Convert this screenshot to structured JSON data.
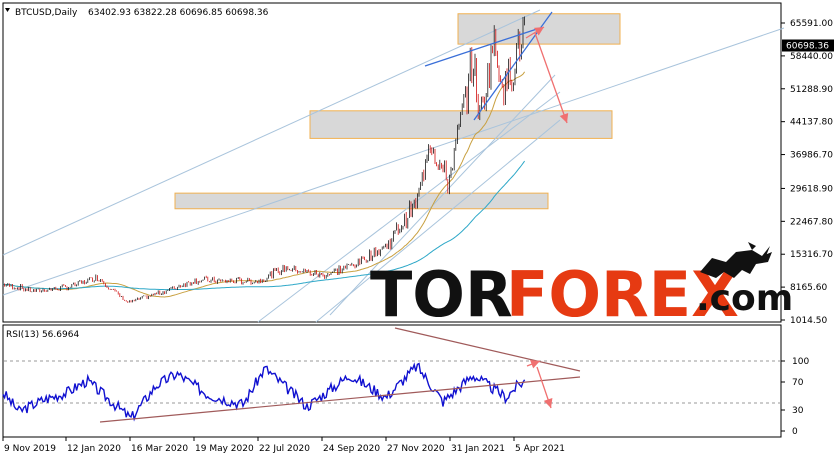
{
  "header": {
    "symbol": "BTCUSD,Daily",
    "ohlc": "63402.93 63822.28 60696.85 60698.36"
  },
  "rsi_header": "RSI(13) 56.6964",
  "watermark": {
    "part1": "TOR",
    "part2": "FOREX",
    "part3": ".com"
  },
  "colors": {
    "bull": "#1a1a1a",
    "bear": "#d01010",
    "ma_fast": "#c8a040",
    "ma_slow": "#2ea8c8",
    "channel": "#a9c4dc",
    "trend_blue": "#3a6fd8",
    "zone_fill": "#d8d8d8",
    "zone_border": "#f0b050",
    "arrow": "#f07070",
    "rsi_line": "#1010d0",
    "rsi_trend": "#a05a5a"
  },
  "chart_data": [
    {
      "type": "candlestick",
      "symbol": "BTCUSD",
      "timeframe": "Daily",
      "last_price_label": "60698.36",
      "y_ticks": [
        "65591.00",
        "58440.00",
        "51288.90",
        "44137.80",
        "36986.70",
        "29618.90",
        "22467.80",
        "15316.70",
        "8165.60",
        "1014.50"
      ],
      "y_tick_values": [
        65591,
        58440,
        51288.9,
        44137.8,
        36986.7,
        29618.9,
        22467.8,
        15316.7,
        8165.6,
        1014.5
      ],
      "x_ticks": [
        "9 Nov 2019",
        "12 Jan 2020",
        "16 Mar 2020",
        "19 May 2020",
        "22 Jul 2020",
        "24 Sep 2020",
        "27 Nov 2020",
        "31 Jan 2021",
        "5 Apr 2021"
      ],
      "close_approx": [
        {
          "date": "2019-11-09",
          "close": 8800
        },
        {
          "date": "2019-12-10",
          "close": 7300
        },
        {
          "date": "2020-01-12",
          "close": 8100
        },
        {
          "date": "2020-02-12",
          "close": 10300
        },
        {
          "date": "2020-03-12",
          "close": 4900
        },
        {
          "date": "2020-03-16",
          "close": 5000
        },
        {
          "date": "2020-04-18",
          "close": 7200
        },
        {
          "date": "2020-05-19",
          "close": 9700
        },
        {
          "date": "2020-06-20",
          "close": 9400
        },
        {
          "date": "2020-07-22",
          "close": 9500
        },
        {
          "date": "2020-08-17",
          "close": 12300
        },
        {
          "date": "2020-09-24",
          "close": 10700
        },
        {
          "date": "2020-10-25",
          "close": 13100
        },
        {
          "date": "2020-11-27",
          "close": 17200
        },
        {
          "date": "2020-12-28",
          "close": 27000
        },
        {
          "date": "2021-01-08",
          "close": 40500
        },
        {
          "date": "2021-01-27",
          "close": 30400
        },
        {
          "date": "2021-02-21",
          "close": 57500
        },
        {
          "date": "2021-02-28",
          "close": 45200
        },
        {
          "date": "2021-03-13",
          "close": 61100
        },
        {
          "date": "2021-03-25",
          "close": 51300
        },
        {
          "date": "2021-04-05",
          "close": 58800
        },
        {
          "date": "2021-04-14",
          "close": 63400
        },
        {
          "date": "2021-04-15",
          "close": 60698.36
        }
      ],
      "zones": [
        {
          "low": 61000,
          "high": 67600
        },
        {
          "low": 40500,
          "high": 46500
        },
        {
          "low": 25200,
          "high": 28600
        }
      ]
    },
    {
      "type": "line",
      "name": "RSI(13)",
      "last_value": 56.6964,
      "y_ticks": [
        "100",
        "70",
        "30",
        "0"
      ],
      "y_tick_values": [
        100,
        70,
        30,
        0
      ],
      "levels": [
        70,
        30
      ],
      "values_approx": [
        {
          "date": "2019-11-09",
          "rsi": 55
        },
        {
          "date": "2019-11-25",
          "rsi": 28
        },
        {
          "date": "2019-12-20",
          "rsi": 45
        },
        {
          "date": "2020-01-12",
          "rsi": 55
        },
        {
          "date": "2020-02-01",
          "rsi": 72
        },
        {
          "date": "2020-03-16",
          "rsi": 18
        },
        {
          "date": "2020-04-10",
          "rsi": 65
        },
        {
          "date": "2020-05-01",
          "rsi": 82
        },
        {
          "date": "2020-06-01",
          "rsi": 52
        },
        {
          "date": "2020-07-06",
          "rsi": 38
        },
        {
          "date": "2020-07-28",
          "rsi": 90
        },
        {
          "date": "2020-09-08",
          "rsi": 35
        },
        {
          "date": "2020-10-21",
          "rsi": 80
        },
        {
          "date": "2020-11-26",
          "rsi": 48
        },
        {
          "date": "2020-12-27",
          "rsi": 93
        },
        {
          "date": "2021-01-22",
          "rsi": 42
        },
        {
          "date": "2021-02-21",
          "rsi": 80
        },
        {
          "date": "2021-03-26",
          "rsi": 48
        },
        {
          "date": "2021-04-05",
          "rsi": 63
        },
        {
          "date": "2021-04-14",
          "rsi": 72
        },
        {
          "date": "2021-04-15",
          "rsi": 56.6964
        }
      ]
    }
  ]
}
